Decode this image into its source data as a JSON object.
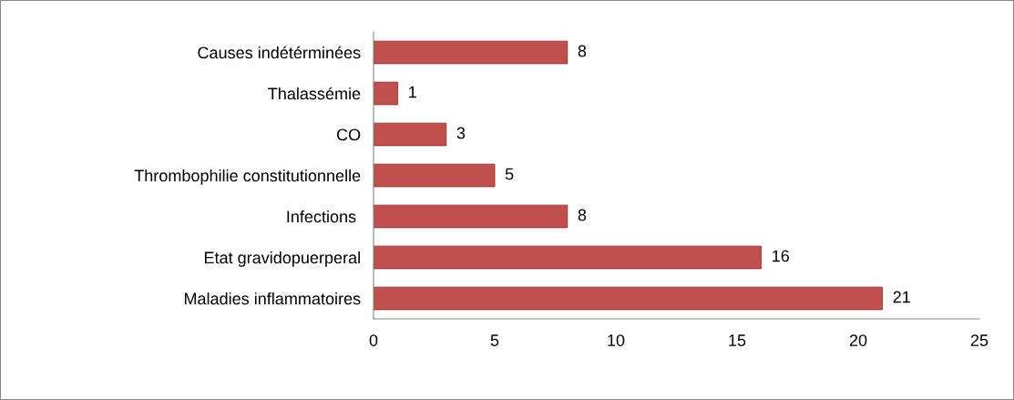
{
  "chart_data": {
    "type": "bar",
    "orientation": "horizontal",
    "categories": [
      "Causes indétérminées",
      "Thalassémie",
      "CO",
      "Thrombophilie constitutionnelle",
      "Infections ",
      "Etat gravidopuerperal",
      "Maladies inflammatoires"
    ],
    "values": [
      8,
      1,
      3,
      5,
      8,
      16,
      21
    ],
    "color": "#c0504d",
    "xlim": [
      0,
      25
    ],
    "xticks": [
      0,
      5,
      10,
      15,
      20,
      25
    ],
    "grid": false,
    "legend": false,
    "data_labels": true
  }
}
